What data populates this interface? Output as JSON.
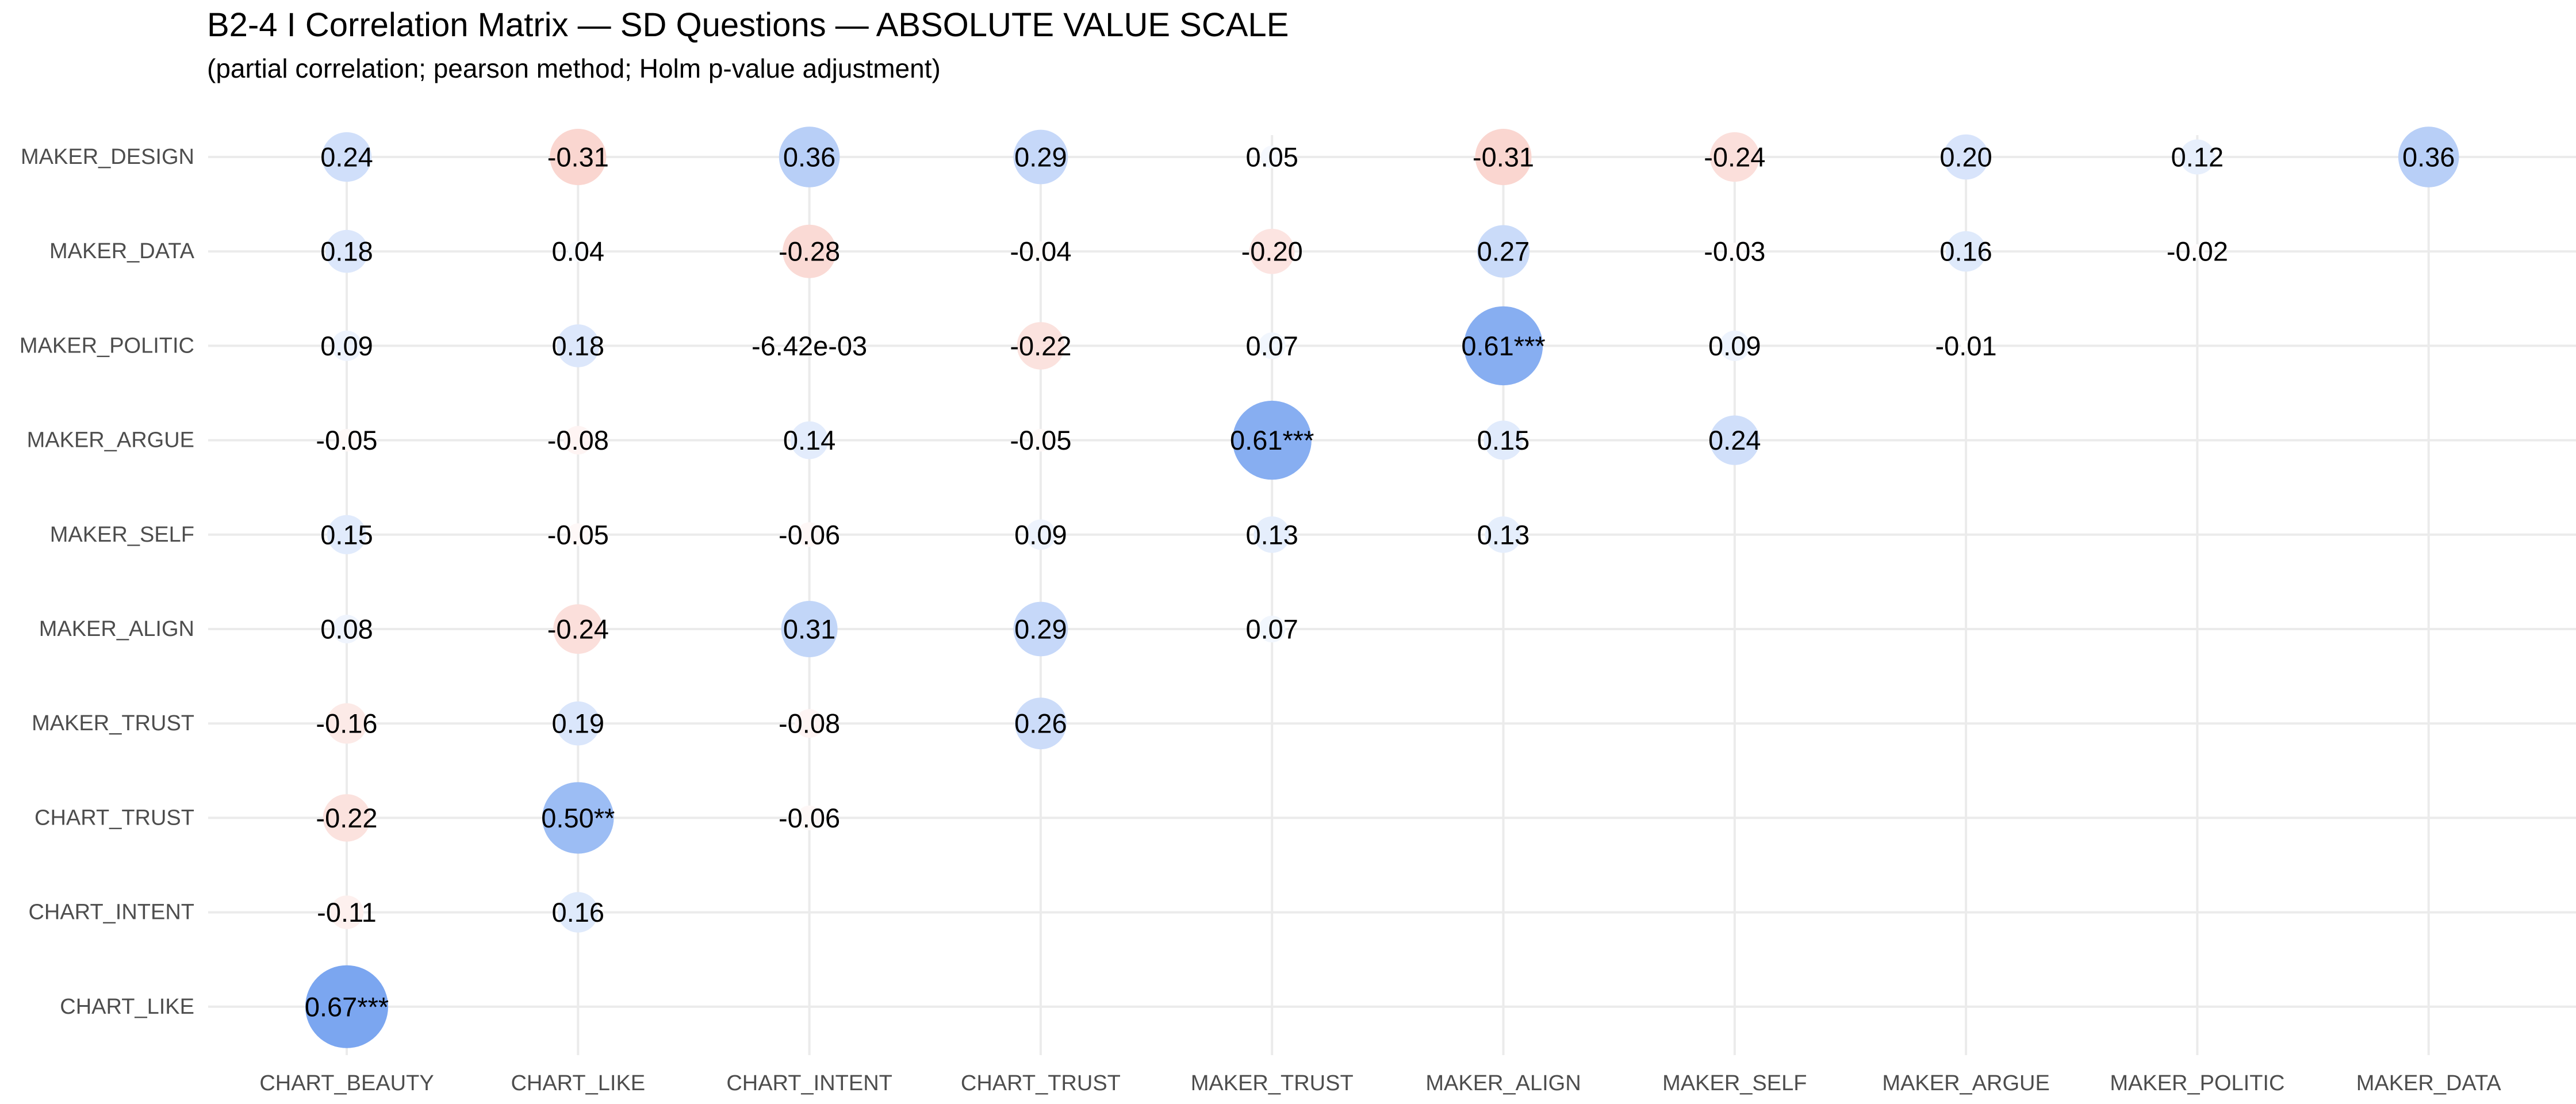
{
  "title": "B2-4  I Correlation Matrix — SD Questions — ABSOLUTE VALUE SCALE",
  "subtitle": "(partial correlation; pearson method; Holm p-value adjustment)",
  "chart_data": {
    "type": "scatter",
    "title": "B2-4  I Correlation Matrix — SD Questions — ABSOLUTE VALUE SCALE",
    "subtitle": "(partial correlation; pearson method; Holm p-value adjustment)",
    "xlabel": "",
    "ylabel": "",
    "grid": true,
    "x_categories": [
      "CHART_BEAUTY",
      "CHART_LIKE",
      "CHART_INTENT",
      "CHART_TRUST",
      "MAKER_TRUST",
      "MAKER_ALIGN",
      "MAKER_SELF",
      "MAKER_ARGUE",
      "MAKER_POLITIC",
      "MAKER_DATA"
    ],
    "y_categories": [
      "MAKER_DESIGN",
      "MAKER_DATA",
      "MAKER_POLITIC",
      "MAKER_ARGUE",
      "MAKER_SELF",
      "MAKER_ALIGN",
      "MAKER_TRUST",
      "CHART_TRUST",
      "CHART_INTENT",
      "CHART_LIKE"
    ],
    "colors": {
      "positive": "#7ba6f0",
      "negative": "#f4a69a"
    },
    "cells": [
      {
        "x": "CHART_BEAUTY",
        "y": "MAKER_DESIGN",
        "value": 0.24,
        "label": "0.24"
      },
      {
        "x": "CHART_LIKE",
        "y": "MAKER_DESIGN",
        "value": -0.31,
        "label": "-0.31"
      },
      {
        "x": "CHART_INTENT",
        "y": "MAKER_DESIGN",
        "value": 0.36,
        "label": "0.36"
      },
      {
        "x": "CHART_TRUST",
        "y": "MAKER_DESIGN",
        "value": 0.29,
        "label": "0.29"
      },
      {
        "x": "MAKER_TRUST",
        "y": "MAKER_DESIGN",
        "value": 0.05,
        "label": "0.05"
      },
      {
        "x": "MAKER_ALIGN",
        "y": "MAKER_DESIGN",
        "value": -0.31,
        "label": "-0.31"
      },
      {
        "x": "MAKER_SELF",
        "y": "MAKER_DESIGN",
        "value": -0.24,
        "label": "-0.24"
      },
      {
        "x": "MAKER_ARGUE",
        "y": "MAKER_DESIGN",
        "value": 0.2,
        "label": "0.20"
      },
      {
        "x": "MAKER_POLITIC",
        "y": "MAKER_DESIGN",
        "value": 0.12,
        "label": "0.12"
      },
      {
        "x": "MAKER_DATA",
        "y": "MAKER_DESIGN",
        "value": 0.36,
        "label": "0.36"
      },
      {
        "x": "CHART_BEAUTY",
        "y": "MAKER_DATA",
        "value": 0.18,
        "label": "0.18"
      },
      {
        "x": "CHART_LIKE",
        "y": "MAKER_DATA",
        "value": 0.04,
        "label": "0.04"
      },
      {
        "x": "CHART_INTENT",
        "y": "MAKER_DATA",
        "value": -0.28,
        "label": "-0.28"
      },
      {
        "x": "CHART_TRUST",
        "y": "MAKER_DATA",
        "value": -0.04,
        "label": "-0.04"
      },
      {
        "x": "MAKER_TRUST",
        "y": "MAKER_DATA",
        "value": -0.2,
        "label": "-0.20"
      },
      {
        "x": "MAKER_ALIGN",
        "y": "MAKER_DATA",
        "value": 0.27,
        "label": "0.27"
      },
      {
        "x": "MAKER_SELF",
        "y": "MAKER_DATA",
        "value": -0.03,
        "label": "-0.03"
      },
      {
        "x": "MAKER_ARGUE",
        "y": "MAKER_DATA",
        "value": 0.16,
        "label": "0.16"
      },
      {
        "x": "MAKER_POLITIC",
        "y": "MAKER_DATA",
        "value": -0.02,
        "label": "-0.02"
      },
      {
        "x": "CHART_BEAUTY",
        "y": "MAKER_POLITIC",
        "value": 0.09,
        "label": "0.09"
      },
      {
        "x": "CHART_LIKE",
        "y": "MAKER_POLITIC",
        "value": 0.18,
        "label": "0.18"
      },
      {
        "x": "CHART_INTENT",
        "y": "MAKER_POLITIC",
        "value": -0.00642,
        "label": "-6.42e-03"
      },
      {
        "x": "CHART_TRUST",
        "y": "MAKER_POLITIC",
        "value": -0.22,
        "label": "-0.22"
      },
      {
        "x": "MAKER_TRUST",
        "y": "MAKER_POLITIC",
        "value": 0.07,
        "label": "0.07"
      },
      {
        "x": "MAKER_ALIGN",
        "y": "MAKER_POLITIC",
        "value": 0.61,
        "label": "0.61***"
      },
      {
        "x": "MAKER_SELF",
        "y": "MAKER_POLITIC",
        "value": 0.09,
        "label": "0.09"
      },
      {
        "x": "MAKER_ARGUE",
        "y": "MAKER_POLITIC",
        "value": -0.01,
        "label": "-0.01"
      },
      {
        "x": "CHART_BEAUTY",
        "y": "MAKER_ARGUE",
        "value": -0.05,
        "label": "-0.05"
      },
      {
        "x": "CHART_LIKE",
        "y": "MAKER_ARGUE",
        "value": -0.08,
        "label": "-0.08"
      },
      {
        "x": "CHART_INTENT",
        "y": "MAKER_ARGUE",
        "value": 0.14,
        "label": "0.14"
      },
      {
        "x": "CHART_TRUST",
        "y": "MAKER_ARGUE",
        "value": -0.05,
        "label": "-0.05"
      },
      {
        "x": "MAKER_TRUST",
        "y": "MAKER_ARGUE",
        "value": 0.61,
        "label": "0.61***"
      },
      {
        "x": "MAKER_ALIGN",
        "y": "MAKER_ARGUE",
        "value": 0.15,
        "label": "0.15"
      },
      {
        "x": "MAKER_SELF",
        "y": "MAKER_ARGUE",
        "value": 0.24,
        "label": "0.24"
      },
      {
        "x": "CHART_BEAUTY",
        "y": "MAKER_SELF",
        "value": 0.15,
        "label": "0.15"
      },
      {
        "x": "CHART_LIKE",
        "y": "MAKER_SELF",
        "value": -0.05,
        "label": "-0.05"
      },
      {
        "x": "CHART_INTENT",
        "y": "MAKER_SELF",
        "value": -0.06,
        "label": "-0.06"
      },
      {
        "x": "CHART_TRUST",
        "y": "MAKER_SELF",
        "value": 0.09,
        "label": "0.09"
      },
      {
        "x": "MAKER_TRUST",
        "y": "MAKER_SELF",
        "value": 0.13,
        "label": "0.13"
      },
      {
        "x": "MAKER_ALIGN",
        "y": "MAKER_SELF",
        "value": 0.13,
        "label": "0.13"
      },
      {
        "x": "CHART_BEAUTY",
        "y": "MAKER_ALIGN",
        "value": 0.08,
        "label": "0.08"
      },
      {
        "x": "CHART_LIKE",
        "y": "MAKER_ALIGN",
        "value": -0.24,
        "label": "-0.24"
      },
      {
        "x": "CHART_INTENT",
        "y": "MAKER_ALIGN",
        "value": 0.31,
        "label": "0.31"
      },
      {
        "x": "CHART_TRUST",
        "y": "MAKER_ALIGN",
        "value": 0.29,
        "label": "0.29"
      },
      {
        "x": "MAKER_TRUST",
        "y": "MAKER_ALIGN",
        "value": 0.07,
        "label": "0.07"
      },
      {
        "x": "CHART_BEAUTY",
        "y": "MAKER_TRUST",
        "value": -0.16,
        "label": "-0.16"
      },
      {
        "x": "CHART_LIKE",
        "y": "MAKER_TRUST",
        "value": 0.19,
        "label": "0.19"
      },
      {
        "x": "CHART_INTENT",
        "y": "MAKER_TRUST",
        "value": -0.08,
        "label": "-0.08"
      },
      {
        "x": "CHART_TRUST",
        "y": "MAKER_TRUST",
        "value": 0.26,
        "label": "0.26"
      },
      {
        "x": "CHART_BEAUTY",
        "y": "CHART_TRUST",
        "value": -0.22,
        "label": "-0.22"
      },
      {
        "x": "CHART_LIKE",
        "y": "CHART_TRUST",
        "value": 0.5,
        "label": "0.50**"
      },
      {
        "x": "CHART_INTENT",
        "y": "CHART_TRUST",
        "value": -0.06,
        "label": "-0.06"
      },
      {
        "x": "CHART_BEAUTY",
        "y": "CHART_INTENT",
        "value": -0.11,
        "label": "-0.11"
      },
      {
        "x": "CHART_LIKE",
        "y": "CHART_INTENT",
        "value": 0.16,
        "label": "0.16"
      },
      {
        "x": "CHART_BEAUTY",
        "y": "CHART_LIKE",
        "value": 0.67,
        "label": "0.67***"
      }
    ]
  }
}
